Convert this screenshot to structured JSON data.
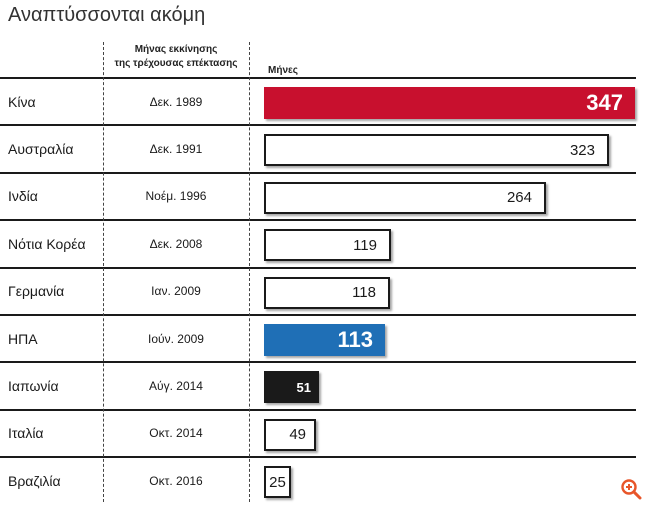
{
  "title": "Αναπτύσσονται ακόμη",
  "headers": {
    "start_month_line1": "Μήνας εκκίνησης",
    "start_month_line2": "της τρέχουσας επέκτασης",
    "months": "Μήνες"
  },
  "chart_data": {
    "type": "bar",
    "orientation": "horizontal",
    "categories": [
      "Κίνα",
      "Αυστραλία",
      "Ινδία",
      "Νότια Κορέα",
      "Γερμανία",
      "ΗΠΑ",
      "Ιαπωνία",
      "Ιταλία",
      "Βραζιλία"
    ],
    "start_months": [
      "Δεκ. 1989",
      "Δεκ. 1991",
      "Νοέμ. 1996",
      "Δεκ. 2008",
      "Ιαν. 2009",
      "Ιούν. 2009",
      "Αύγ. 2014",
      "Οκτ. 2014",
      "Οκτ. 2016"
    ],
    "values": [
      347,
      323,
      264,
      119,
      118,
      113,
      51,
      49,
      25
    ],
    "value_labels": [
      "347",
      "323",
      "264",
      "119",
      "118",
      "113",
      "51",
      "49",
      "25"
    ],
    "xlim": [
      0,
      347
    ],
    "highlight_colors": {
      "Κίνα": "#c8102e",
      "ΗΠΑ": "#1f6fb6",
      "Ιαπωνία": "#1a1a1a"
    },
    "default_bar_color": "#ffffff",
    "grid": false,
    "legend": "none"
  },
  "icons": {
    "zoom": "zoom-in-icon"
  }
}
